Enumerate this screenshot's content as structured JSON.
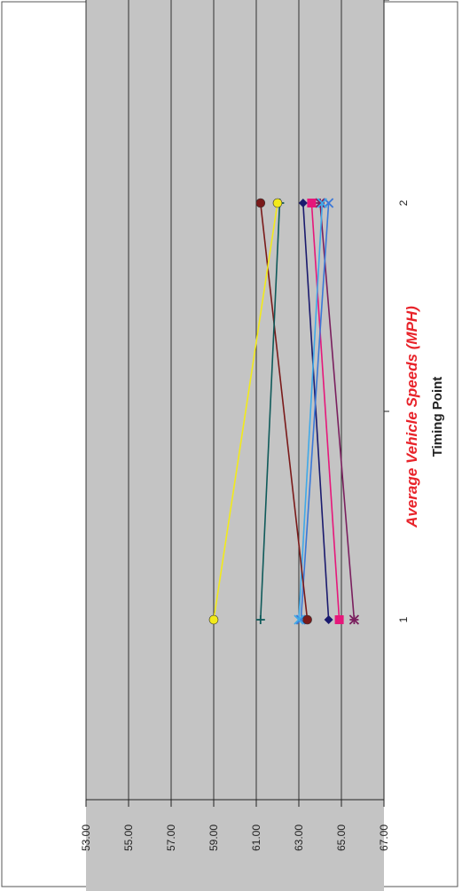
{
  "chart_data": {
    "type": "line",
    "title": "Average Vehicle Speeds (MPH)",
    "xlabel": "Timing Point",
    "ylabel": "",
    "categories": [
      "1",
      "2"
    ],
    "ylim": [
      53,
      67
    ],
    "yticks": [
      "53.00",
      "55.00",
      "57.00",
      "59.00",
      "61.00",
      "63.00",
      "65.00",
      "67.00"
    ],
    "grid": true,
    "legend": "none",
    "title_color": "#e8232a",
    "plot_background": "#c4c4c4",
    "series": [
      {
        "values": [
          65.6,
          64.0
        ],
        "color": "#7a1f5e",
        "marker": "star"
      },
      {
        "values": [
          64.9,
          63.6
        ],
        "color": "#e6177a",
        "marker": "square"
      },
      {
        "values": [
          64.4,
          63.2
        ],
        "color": "#1a1a6e",
        "marker": "diamond"
      },
      {
        "values": [
          63.1,
          64.4
        ],
        "color": "#3a78d8",
        "marker": "x"
      },
      {
        "values": [
          63.0,
          64.1
        ],
        "color": "#3fa9e8",
        "marker": "x"
      },
      {
        "values": [
          63.4,
          61.2
        ],
        "color": "#7a1a1a",
        "marker": "circle"
      },
      {
        "values": [
          61.2,
          62.1
        ],
        "color": "#0f5a5a",
        "marker": "plus"
      },
      {
        "values": [
          59.0,
          62.0
        ],
        "color": "#f2ea1a",
        "marker": "circle"
      }
    ]
  }
}
